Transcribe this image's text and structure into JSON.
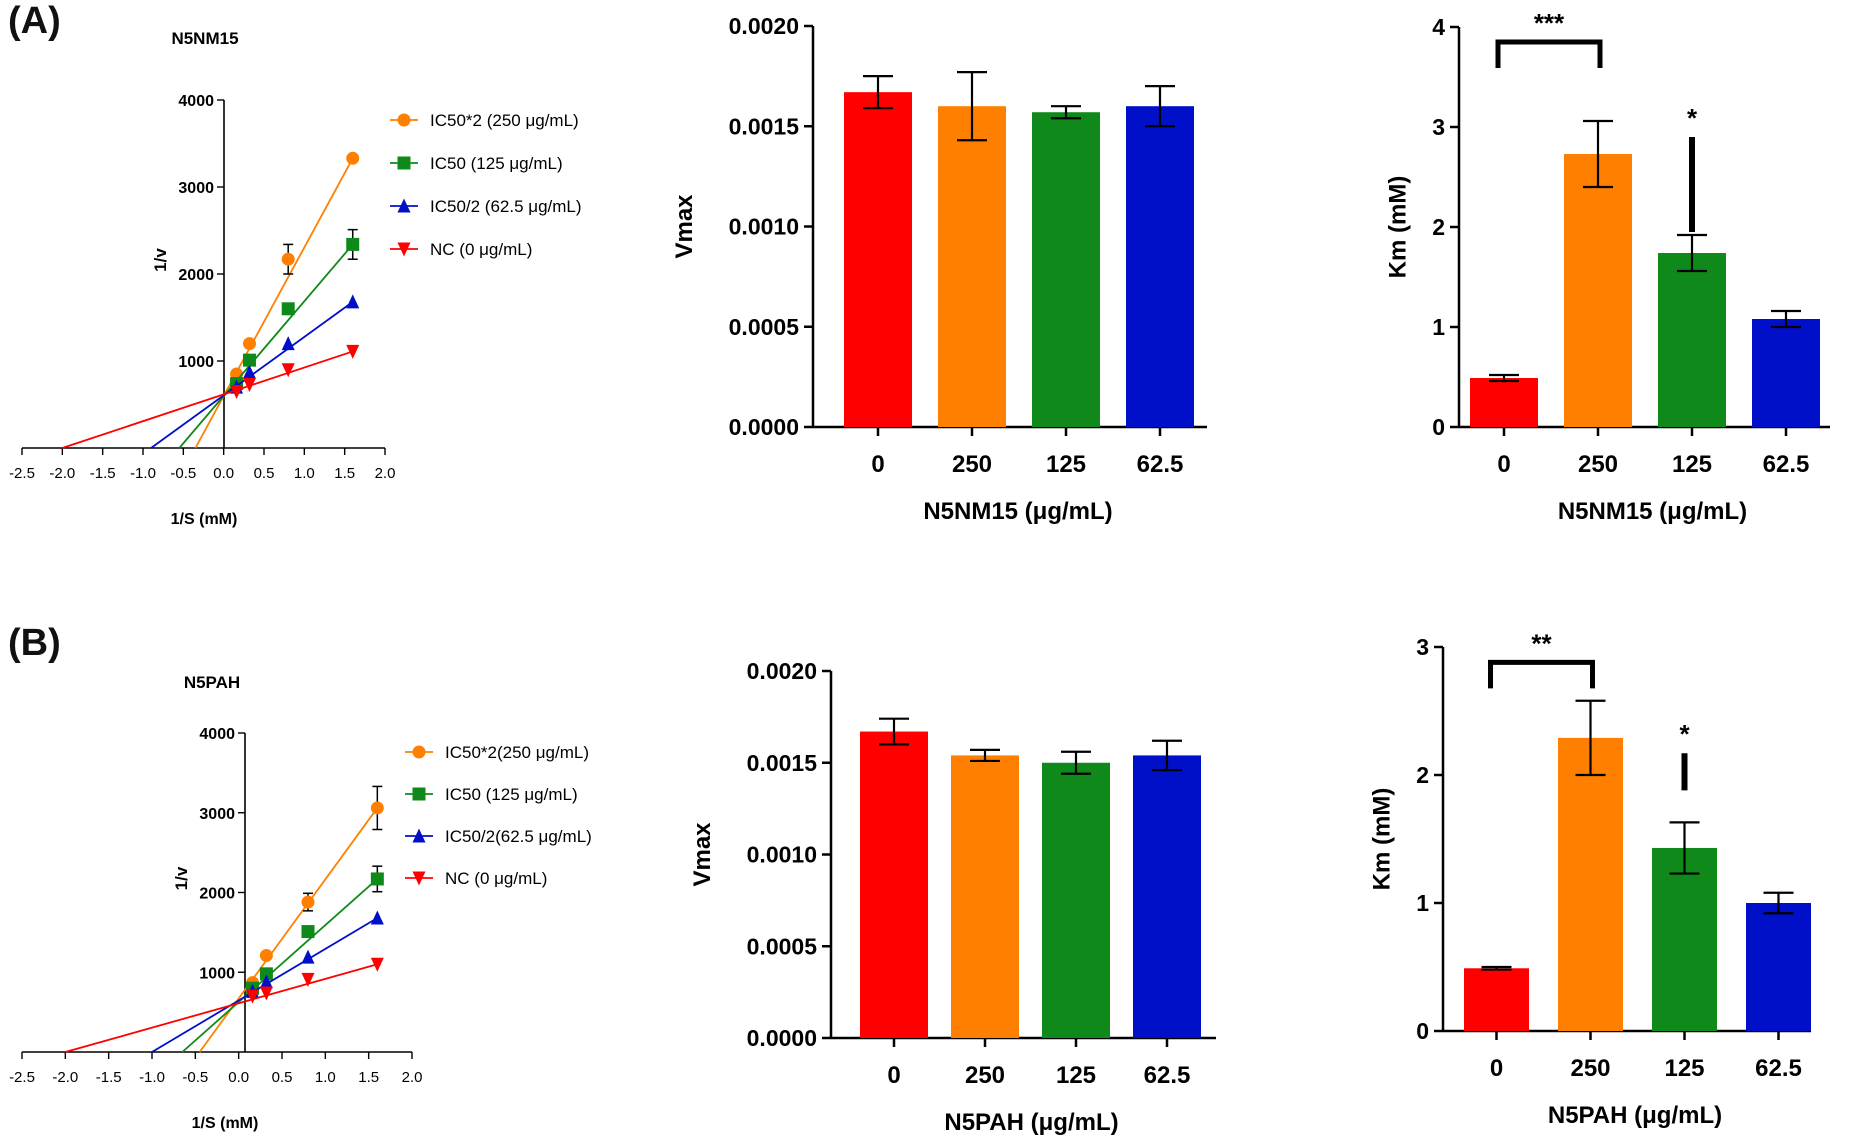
{
  "panels": [
    {
      "label": "(A)"
    },
    {
      "label": "(B)"
    }
  ],
  "colors": {
    "red": "#ff0000",
    "orange": "#ff8000",
    "green": "#0f8a1a",
    "blue": "#0010c8",
    "axis": "#000000"
  },
  "chart_data": [
    {
      "id": "A-lb",
      "type": "line",
      "title": "N5NM15",
      "xlabel": "1/S (mM)",
      "ylabel": "1/v",
      "xlim": [
        -2.5,
        2.0
      ],
      "ylim": [
        0,
        4000
      ],
      "xticks": [
        "-2.5",
        "-2.0",
        "-1.5",
        "-1.0",
        "-0.5",
        "0.0",
        "0.5",
        "1.0",
        "1.5",
        "2.0"
      ],
      "yticks": [
        "1000",
        "2000",
        "3000",
        "4000"
      ],
      "legend": "top-right",
      "x": [
        0.16,
        0.32,
        0.8,
        1.6
      ],
      "series": [
        {
          "name": "IC50*2 (250 μg/mL)",
          "color": "orange",
          "marker": "circle",
          "values": [
            850,
            1200,
            2170,
            3330
          ],
          "err": [
            0,
            0,
            170,
            0
          ],
          "line": [
            [
              -0.35,
              0
            ],
            [
              1.6,
              3330
            ]
          ]
        },
        {
          "name": "IC50 (125 μg/mL)",
          "color": "green",
          "marker": "square",
          "values": [
            740,
            1010,
            1600,
            2340
          ],
          "err": [
            0,
            0,
            0,
            170
          ],
          "line": [
            [
              -0.55,
              0
            ],
            [
              1.6,
              2340
            ]
          ]
        },
        {
          "name": "IC50/2 (62.5 μg/mL)",
          "color": "blue",
          "marker": "triangle-up",
          "values": [
            700,
            870,
            1200,
            1680
          ],
          "err": [
            0,
            0,
            0,
            0
          ],
          "line": [
            [
              -0.9,
              0
            ],
            [
              1.6,
              1680
            ]
          ]
        },
        {
          "name": "NC (0 μg/mL)",
          "color": "red",
          "marker": "triangle-down",
          "values": [
            650,
            730,
            900,
            1110
          ],
          "err": [
            0,
            0,
            0,
            0
          ],
          "line": [
            [
              -2.0,
              0
            ],
            [
              1.6,
              1110
            ]
          ]
        }
      ]
    },
    {
      "id": "A-vmax",
      "type": "bar",
      "xlabel": "N5NM15 (μg/mL)",
      "ylabel": "Vmax",
      "ylim": [
        0,
        0.002
      ],
      "yticks": [
        "0.0000",
        "0.0005",
        "0.0010",
        "0.0015",
        "0.0020"
      ],
      "categories": [
        "0",
        "250",
        "125",
        "62.5"
      ],
      "values": [
        0.00167,
        0.0016,
        0.00157,
        0.0016
      ],
      "err": [
        8e-05,
        0.00017,
        3e-05,
        0.0001
      ],
      "bar_colors": [
        "red",
        "orange",
        "green",
        "blue"
      ]
    },
    {
      "id": "A-km",
      "type": "bar",
      "xlabel": "N5NM15 (μg/mL)",
      "ylabel": "Km (mM)",
      "ylim": [
        0,
        4
      ],
      "yticks": [
        "0",
        "1",
        "2",
        "3",
        "4"
      ],
      "categories": [
        "0",
        "250",
        "125",
        "62.5"
      ],
      "values": [
        0.49,
        2.73,
        1.74,
        1.08
      ],
      "err": [
        0.03,
        0.33,
        0.18,
        0.08
      ],
      "bar_colors": [
        "red",
        "orange",
        "green",
        "blue"
      ],
      "annotations": [
        {
          "text": "***",
          "type": "bracket",
          "from": 0,
          "to": 1,
          "y": 3.85
        },
        {
          "text": "*",
          "type": "vline",
          "at": 2,
          "y1": 1.95,
          "y2": 2.9
        }
      ]
    },
    {
      "id": "B-lb",
      "type": "line",
      "title": "N5PAH",
      "xlabel": "1/S (mM)",
      "ylabel": "1/v",
      "xlim": [
        -2.5,
        2.0
      ],
      "ylim": [
        0,
        4000
      ],
      "xticks": [
        "-2.5",
        "-2.0",
        "-1.5",
        "-1.0",
        "-0.5",
        "0.0",
        "0.5",
        "1.0",
        "1.5",
        "2.0"
      ],
      "yticks": [
        "1000",
        "2000",
        "3000",
        "4000"
      ],
      "legend": "top-right",
      "x": [
        0.16,
        0.32,
        0.8,
        1.6
      ],
      "series": [
        {
          "name": "IC50*2(250 μg/mL)",
          "color": "orange",
          "marker": "circle",
          "values": [
            870,
            1210,
            1880,
            3060
          ],
          "err": [
            0,
            0,
            110,
            270
          ],
          "line": [
            [
              -0.45,
              0
            ],
            [
              1.6,
              3060
            ]
          ]
        },
        {
          "name": "IC50 (125 μg/mL)",
          "color": "green",
          "marker": "square",
          "values": [
            800,
            980,
            1510,
            2170
          ],
          "err": [
            0,
            0,
            0,
            160
          ],
          "line": [
            [
              -0.65,
              0
            ],
            [
              1.6,
              2170
            ]
          ]
        },
        {
          "name": "IC50/2(62.5 μg/mL)",
          "color": "blue",
          "marker": "triangle-up",
          "values": [
            760,
            880,
            1190,
            1680
          ],
          "err": [
            0,
            0,
            0,
            0
          ],
          "line": [
            [
              -1.0,
              0
            ],
            [
              1.6,
              1680
            ]
          ]
        },
        {
          "name": "NC (0 μg/mL)",
          "color": "red",
          "marker": "triangle-down",
          "values": [
            700,
            740,
            910,
            1100
          ],
          "err": [
            0,
            0,
            0,
            0
          ],
          "line": [
            [
              -2.0,
              0
            ],
            [
              1.6,
              1100
            ]
          ]
        }
      ]
    },
    {
      "id": "B-vmax",
      "type": "bar",
      "xlabel": "N5PAH (μg/mL)",
      "ylabel": "Vmax",
      "ylim": [
        0,
        0.002
      ],
      "yticks": [
        "0.0000",
        "0.0005",
        "0.0010",
        "0.0015",
        "0.0020"
      ],
      "categories": [
        "0",
        "250",
        "125",
        "62.5"
      ],
      "values": [
        0.00167,
        0.00154,
        0.0015,
        0.00154
      ],
      "err": [
        7e-05,
        3e-05,
        6e-05,
        8e-05
      ],
      "bar_colors": [
        "red",
        "orange",
        "green",
        "blue"
      ]
    },
    {
      "id": "B-km",
      "type": "bar",
      "xlabel": "N5PAH (μg/mL)",
      "ylabel": "Km (mM)",
      "ylim": [
        0,
        3
      ],
      "yticks": [
        "0",
        "1",
        "2",
        "3"
      ],
      "categories": [
        "0",
        "250",
        "125",
        "62.5"
      ],
      "values": [
        0.49,
        2.29,
        1.43,
        1.0
      ],
      "err": [
        0.01,
        0.29,
        0.2,
        0.08
      ],
      "bar_colors": [
        "red",
        "orange",
        "green",
        "blue"
      ],
      "annotations": [
        {
          "text": "**",
          "type": "bracket",
          "from": 0,
          "to": 1,
          "y": 2.88
        },
        {
          "text": "*",
          "type": "vline",
          "at": 2,
          "y1": 1.88,
          "y2": 2.17
        }
      ]
    }
  ]
}
